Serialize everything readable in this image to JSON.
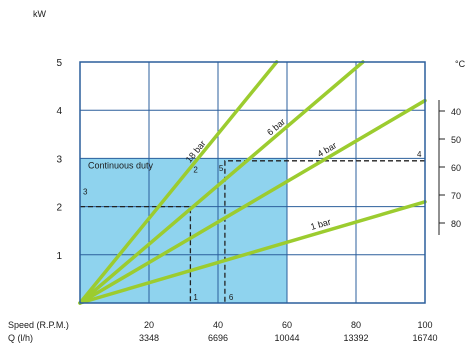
{
  "chart_data": {
    "type": "line",
    "title": "",
    "ylabel": "kW",
    "ylim": [
      0,
      5
    ],
    "y_ticks": [
      1,
      2,
      3,
      4,
      5
    ],
    "xlim": [
      0,
      100
    ],
    "speed_label": "Speed (R.P.M.)",
    "flow_label": "Q (l/h)",
    "x_ticks": [
      {
        "speed": "20",
        "flow": "3348"
      },
      {
        "speed": "40",
        "flow": "6696"
      },
      {
        "speed": "60",
        "flow": "10044"
      },
      {
        "speed": "80",
        "flow": "13392"
      },
      {
        "speed": "100",
        "flow": "16740"
      }
    ],
    "grid": true,
    "continuous_duty": {
      "label": "Continuous duty",
      "x_max": 60,
      "y_max": 3
    },
    "series": [
      {
        "name": "18 bar",
        "x": [
          0,
          57
        ],
        "y": [
          0,
          5
        ]
      },
      {
        "name": "6 bar",
        "x": [
          0,
          82
        ],
        "y": [
          0,
          5
        ]
      },
      {
        "name": "4 bar",
        "x": [
          0,
          100
        ],
        "y": [
          0,
          4.2
        ]
      },
      {
        "name": "1 bar",
        "x": [
          0,
          100
        ],
        "y": [
          0,
          2.1
        ]
      }
    ],
    "markers": [
      {
        "label": "1",
        "x": 32,
        "y": 0
      },
      {
        "label": "2",
        "x": 32,
        "y": 2.5
      },
      {
        "label": "3",
        "x": 0,
        "y": 2.5
      },
      {
        "label": "4",
        "x": 100,
        "y": 2.95
      },
      {
        "label": "5",
        "x": 42,
        "y": 2.95
      },
      {
        "label": "6",
        "x": 42,
        "y": 0
      }
    ],
    "guides": [
      {
        "points": [
          [
            0,
            2
          ],
          [
            32,
            2
          ],
          [
            32,
            0
          ]
        ]
      },
      {
        "points": [
          [
            100,
            2.95
          ],
          [
            42,
            2.95
          ],
          [
            42,
            0
          ]
        ]
      }
    ],
    "temperature_scale": {
      "unit": "°C",
      "ticks": [
        "40",
        "50",
        "60",
        "70",
        "80"
      ]
    }
  }
}
